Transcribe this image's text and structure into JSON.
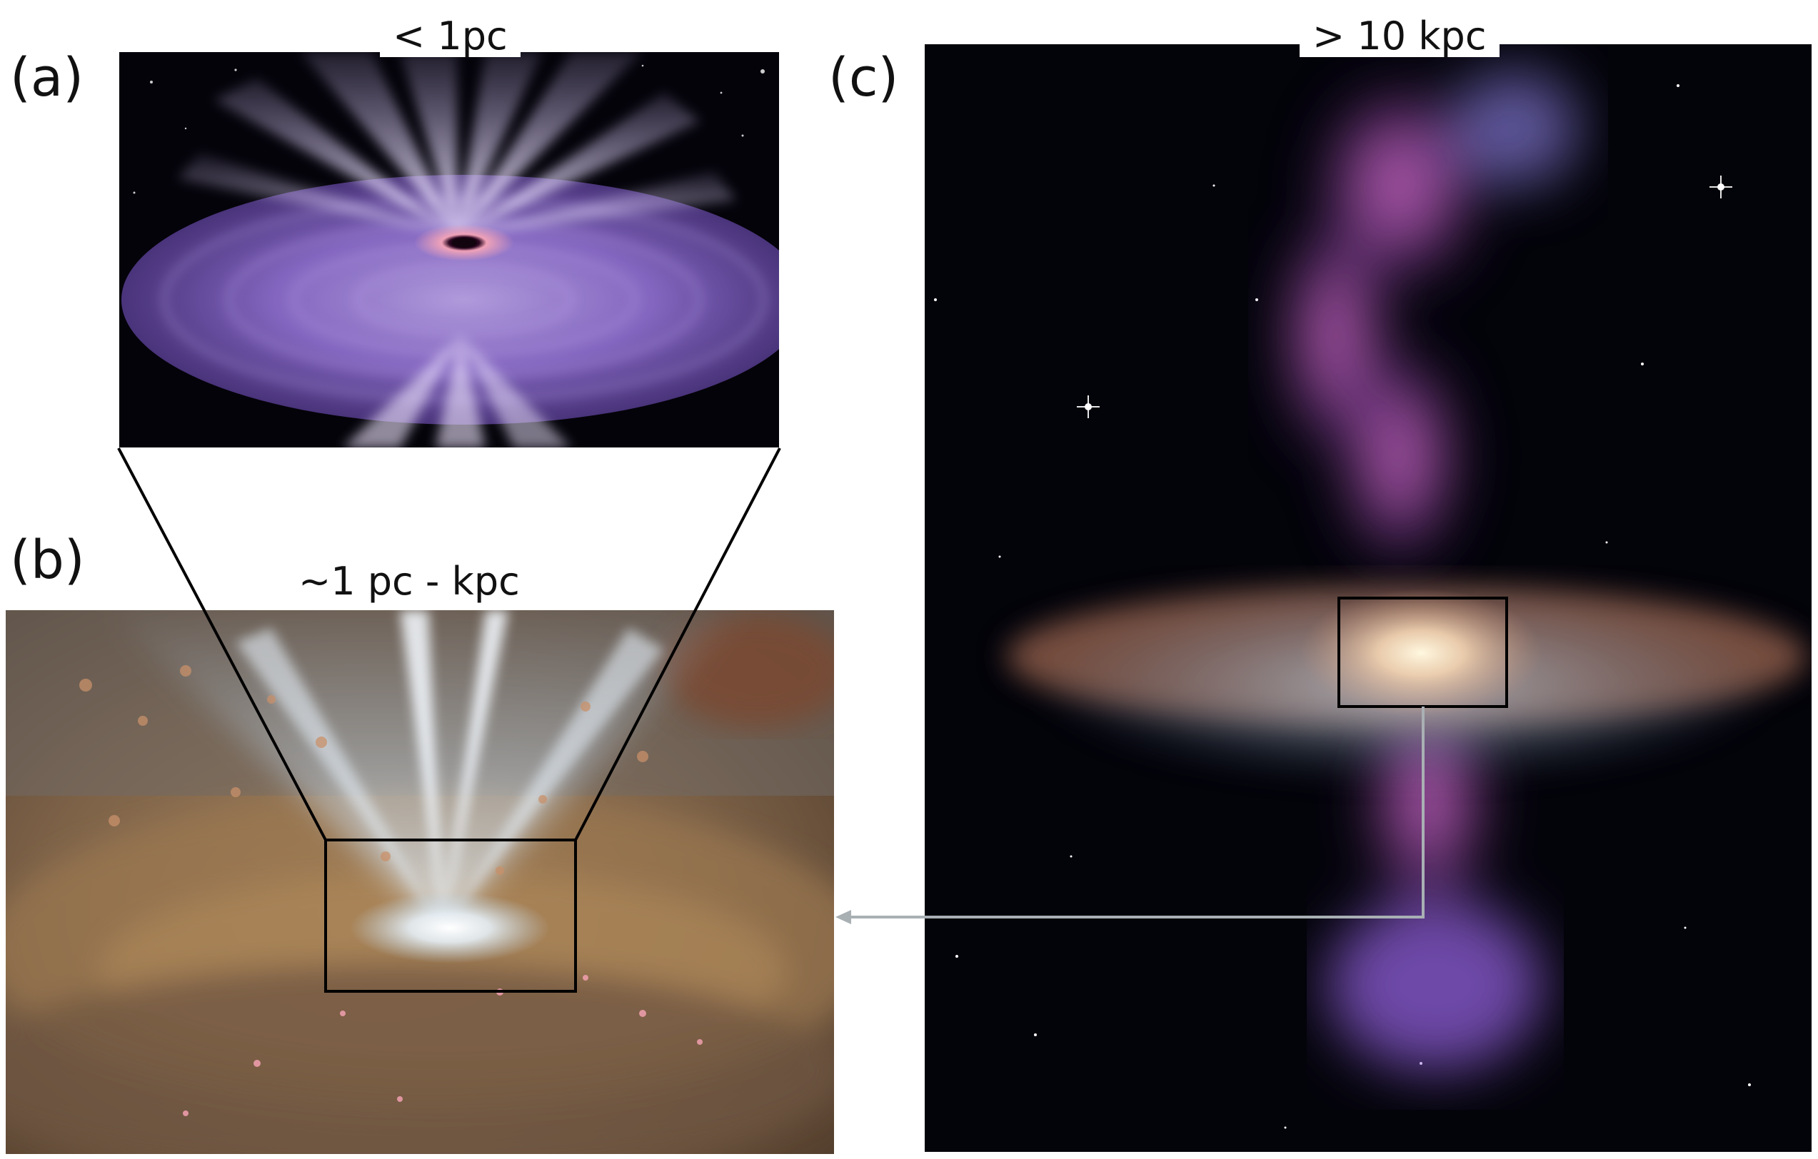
{
  "panels": {
    "a": {
      "label": "(a)",
      "scale": "< 1pc"
    },
    "b": {
      "label": "(b)",
      "scale": "~1 pc - kpc"
    },
    "c": {
      "label": "(c)",
      "scale": "> 10 kpc"
    }
  },
  "colors": {
    "background": "#ffffff",
    "space": "#04030a",
    "disk_purple": "#8a6bc9",
    "outflow_white": "#e8e2f6",
    "torus_brown": "#8a6a48",
    "outflow_blue": "#bcd6ea",
    "galaxy_magenta": "#c04ab8",
    "arrow_gray": "#a9b0b4",
    "frame_black": "#000000"
  }
}
